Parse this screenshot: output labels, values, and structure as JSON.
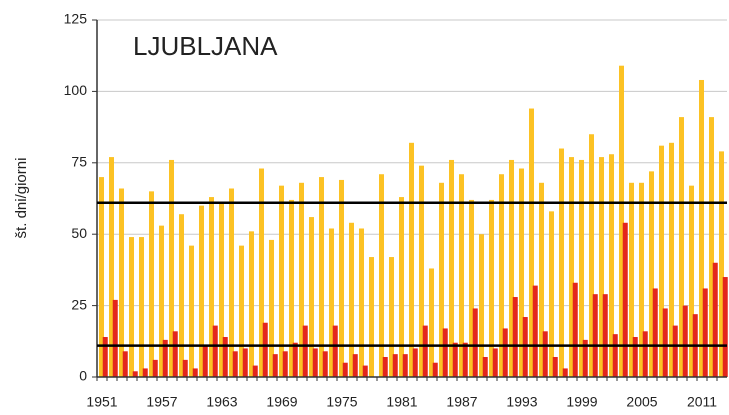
{
  "chart_data": {
    "type": "bar",
    "title": "LJUBLJANA",
    "y_label": "št. dni/giorni",
    "categories": [
      "1951",
      null,
      null,
      null,
      null,
      null,
      "1957",
      null,
      null,
      null,
      null,
      null,
      "1963",
      null,
      null,
      null,
      null,
      null,
      "1969",
      null,
      null,
      null,
      null,
      null,
      "1975",
      null,
      null,
      null,
      null,
      null,
      "1981",
      null,
      null,
      null,
      null,
      null,
      "1987",
      null,
      null,
      null,
      null,
      null,
      "1993",
      null,
      null,
      null,
      null,
      null,
      "1999",
      null,
      null,
      null,
      null,
      null,
      "2005",
      null,
      null,
      null,
      null,
      null,
      "2011",
      null,
      null
    ],
    "series": [
      {
        "color": "#fcc224",
        "values": [
          70,
          77,
          66,
          49,
          49,
          65,
          53,
          76,
          57,
          46,
          60,
          63,
          61,
          66,
          46,
          51,
          73,
          48,
          67,
          62,
          68,
          56,
          70,
          52,
          69,
          54,
          52,
          42,
          71,
          42,
          63,
          82,
          74,
          38,
          68,
          76,
          71,
          62,
          50,
          62,
          71,
          76,
          73,
          94,
          68,
          58,
          80,
          77,
          76,
          85,
          77,
          78,
          109,
          68,
          68,
          72,
          81,
          82,
          91,
          67,
          104,
          91,
          79
        ]
      },
      {
        "color": "#e3261c",
        "values": [
          14,
          27,
          9,
          2,
          3,
          6,
          13,
          16,
          6,
          3,
          11,
          18,
          14,
          9,
          10,
          4,
          19,
          8,
          9,
          12,
          18,
          10,
          9,
          18,
          5,
          8,
          4,
          0,
          7,
          8,
          8,
          10,
          18,
          5,
          17,
          12,
          12,
          24,
          7,
          10,
          17,
          28,
          21,
          32,
          16,
          7,
          3,
          33,
          13,
          29,
          29,
          15,
          54,
          14,
          16,
          31,
          24,
          18,
          25,
          22,
          31,
          40,
          35
        ]
      }
    ],
    "reference_lines": [
      61,
      11
    ],
    "ylim": [
      0,
      125
    ],
    "yticks": [
      0,
      25,
      50,
      75,
      100,
      125
    ],
    "grid": true
  }
}
